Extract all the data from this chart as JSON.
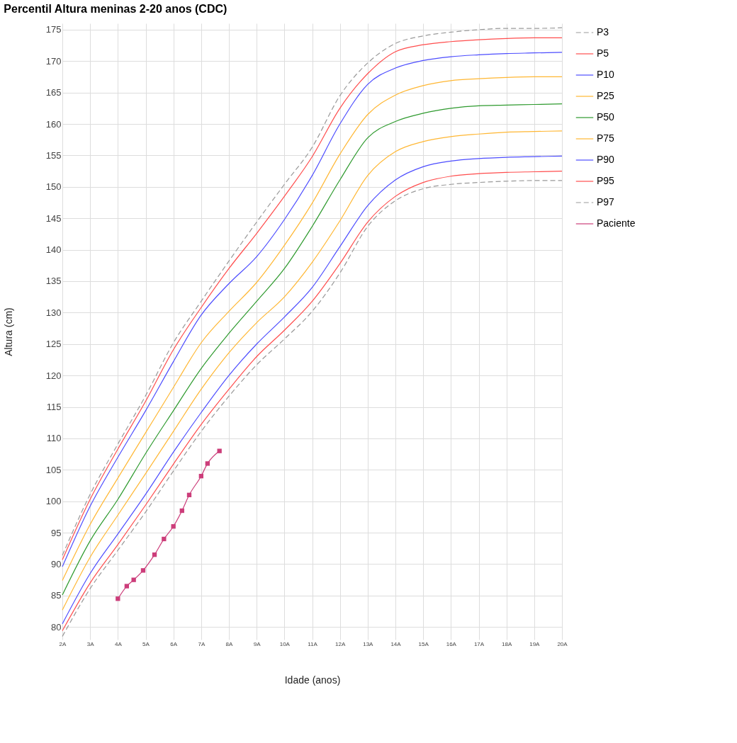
{
  "chart_data": {
    "type": "line",
    "title": "Percentil Altura meninas 2-20 anos (CDC)",
    "xlabel": "Idade (anos)",
    "ylabel": "Altura (cm)",
    "x": [
      2,
      3,
      4,
      5,
      6,
      7,
      8,
      9,
      10,
      11,
      12,
      13,
      14,
      15,
      16,
      17,
      18,
      19,
      20
    ],
    "xlim": [
      2,
      20
    ],
    "ylim": [
      78,
      176
    ],
    "xticks": [
      {
        "value": 2,
        "label": "2A"
      },
      {
        "value": 3,
        "label": "3A"
      },
      {
        "value": 4,
        "label": "4A"
      },
      {
        "value": 5,
        "label": "5A"
      },
      {
        "value": 6,
        "label": "6A"
      },
      {
        "value": 7,
        "label": "7A"
      },
      {
        "value": 8,
        "label": "8A"
      },
      {
        "value": 9,
        "label": "9A"
      },
      {
        "value": 10,
        "label": "10A"
      },
      {
        "value": 11,
        "label": "11A"
      },
      {
        "value": 12,
        "label": "12A"
      },
      {
        "value": 13,
        "label": "13A"
      },
      {
        "value": 14,
        "label": "14A"
      },
      {
        "value": 15,
        "label": "15A"
      },
      {
        "value": 16,
        "label": "16A"
      },
      {
        "value": 17,
        "label": "17A"
      },
      {
        "value": 18,
        "label": "18A"
      },
      {
        "value": 19,
        "label": "19A"
      },
      {
        "value": 20,
        "label": "20A"
      }
    ],
    "yticks": [
      80,
      85,
      90,
      95,
      100,
      105,
      110,
      115,
      120,
      125,
      130,
      135,
      140,
      145,
      150,
      155,
      160,
      165,
      170,
      175
    ],
    "grid": true,
    "legend": "right",
    "line_style": "solid",
    "series": [
      {
        "name": "P3",
        "color": "#999999",
        "line_style": "dashed",
        "values": [
          91.4,
          101.1,
          109.1,
          116.8,
          125.2,
          131.8,
          138.2,
          144.4,
          150.4,
          156.3,
          164.5,
          169.7,
          172.8,
          174.0,
          174.6,
          175.0,
          175.2,
          175.2,
          175.3
        ]
      },
      {
        "name": "P5",
        "color": "#ff4d4d",
        "values": [
          90.7,
          100.3,
          108.3,
          115.9,
          124.1,
          130.8,
          137.0,
          142.6,
          148.5,
          154.8,
          162.5,
          168.0,
          171.5,
          172.6,
          173.1,
          173.4,
          173.6,
          173.7,
          173.7
        ]
      },
      {
        "name": "P10",
        "color": "#4d4dff",
        "values": [
          89.6,
          99.2,
          107.0,
          114.4,
          122.2,
          129.6,
          134.6,
          138.9,
          144.8,
          151.8,
          160.0,
          166.3,
          168.9,
          170.1,
          170.7,
          171.0,
          171.2,
          171.3,
          171.4
        ]
      },
      {
        "name": "P25",
        "color": "#ffb733",
        "values": [
          87.4,
          96.3,
          103.7,
          110.9,
          118.1,
          125.2,
          130.2,
          134.8,
          140.7,
          147.4,
          155.2,
          161.5,
          164.6,
          166.1,
          166.9,
          167.2,
          167.4,
          167.5,
          167.5
        ]
      },
      {
        "name": "P50",
        "color": "#2e9a2e",
        "values": [
          85.1,
          93.7,
          100.3,
          107.6,
          114.4,
          121.1,
          126.7,
          131.8,
          137.0,
          143.7,
          151.1,
          157.8,
          160.4,
          161.7,
          162.5,
          162.9,
          163.0,
          163.1,
          163.2
        ]
      },
      {
        "name": "P75",
        "color": "#ffb733",
        "values": [
          82.7,
          91.1,
          97.8,
          104.4,
          111.1,
          117.8,
          123.6,
          128.4,
          132.5,
          138.0,
          144.6,
          151.8,
          155.6,
          157.2,
          158.0,
          158.4,
          158.7,
          158.8,
          158.9
        ]
      },
      {
        "name": "P90",
        "color": "#4d4dff",
        "values": [
          80.5,
          88.5,
          94.8,
          101.1,
          107.8,
          114.1,
          120.0,
          125.0,
          129.3,
          134.0,
          140.5,
          147.0,
          151.1,
          153.2,
          154.1,
          154.5,
          154.7,
          154.8,
          154.9
        ]
      },
      {
        "name": "P95",
        "color": "#ff4d4d",
        "values": [
          79.4,
          87.0,
          93.1,
          99.4,
          105.9,
          112.2,
          117.8,
          123.0,
          127.2,
          131.8,
          137.8,
          144.4,
          148.5,
          150.7,
          151.7,
          152.1,
          152.3,
          152.4,
          152.5
        ]
      },
      {
        "name": "P97",
        "color": "#999999",
        "line_style": "dashed",
        "values": [
          78.5,
          86.1,
          92.2,
          98.3,
          104.8,
          111.1,
          116.7,
          121.7,
          125.8,
          130.2,
          136.3,
          143.7,
          147.8,
          149.7,
          150.4,
          150.7,
          150.9,
          151.0,
          151.0
        ]
      },
      {
        "name": "Paciente",
        "color": "#cc3d7a",
        "marker": "square",
        "x": [
          4.0,
          4.32,
          4.57,
          4.91,
          5.32,
          5.66,
          6.0,
          6.31,
          6.57,
          7.0,
          7.23,
          7.66
        ],
        "values": [
          84.5,
          86.5,
          87.5,
          89,
          91.5,
          94,
          96,
          98.5,
          101,
          104,
          106,
          108
        ]
      }
    ]
  }
}
